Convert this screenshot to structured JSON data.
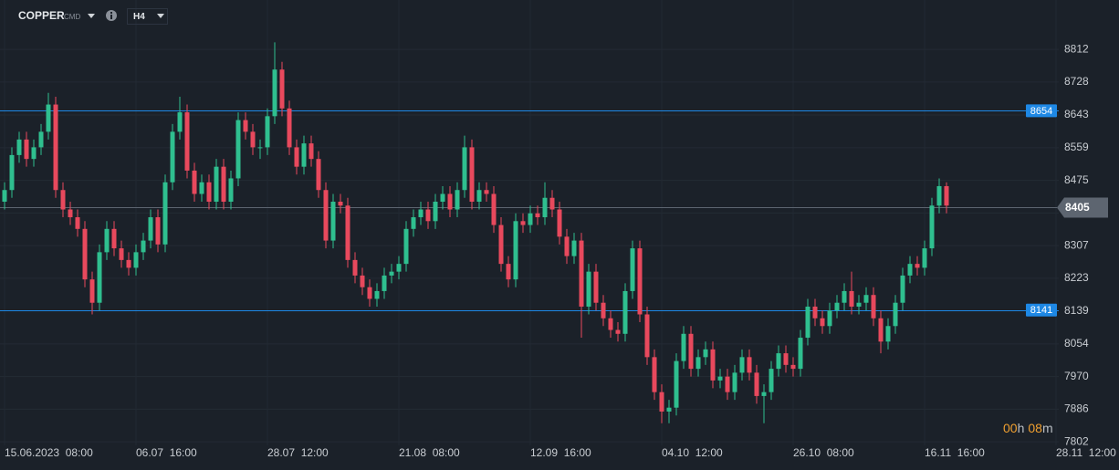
{
  "header": {
    "symbol": "COPPER",
    "market": "CMD",
    "timeframe": "H4"
  },
  "countdown": {
    "hours": "00",
    "hours_unit": "h",
    "minutes": "08",
    "minutes_unit": "m"
  },
  "chart_data": {
    "type": "candlestick",
    "up_color": "#2fbf8f",
    "down_color": "#e8495d",
    "open": [
      8420,
      8450,
      8540,
      8580,
      8530,
      8560,
      8600,
      8670,
      8450,
      8400,
      8380,
      8350,
      8220,
      8160,
      8290,
      8350,
      8300,
      8270,
      8250,
      8290,
      8320,
      8380,
      8310,
      8470,
      8600,
      8650,
      8500,
      8440,
      8470,
      8420,
      8510,
      8420,
      8480,
      8630,
      8600,
      8560,
      8560,
      8640,
      8760,
      8660,
      8560,
      8510,
      8570,
      8530,
      8450,
      8320,
      8420,
      8410,
      8270,
      8230,
      8200,
      8170,
      8190,
      8230,
      8240,
      8260,
      8350,
      8380,
      8400,
      8370,
      8420,
      8440,
      8400,
      8450,
      8560,
      8420,
      8450,
      8440,
      8360,
      8260,
      8220,
      8370,
      8360,
      8390,
      8380,
      8430,
      8400,
      8330,
      8280,
      8320,
      8150,
      8240,
      8160,
      8120,
      8090,
      8080,
      8190,
      8300,
      8130,
      8020,
      7930,
      7880,
      7890,
      8010,
      8080,
      7990,
      8020,
      8040,
      7960,
      7970,
      7930,
      7980,
      8020,
      7980,
      7920,
      7930,
      7990,
      8030,
      8000,
      7990,
      8070,
      8150,
      8120,
      8100,
      8140,
      8160,
      8190,
      8150,
      8160,
      8180,
      8120,
      8060,
      8100,
      8160,
      8230,
      8260,
      8250,
      8300,
      8410,
      8460
    ],
    "high": [
      8470,
      8560,
      8600,
      8600,
      8580,
      8620,
      8700,
      8690,
      8470,
      8420,
      8400,
      8370,
      8240,
      8310,
      8370,
      8370,
      8320,
      8290,
      8310,
      8340,
      8400,
      8400,
      8490,
      8620,
      8690,
      8670,
      8520,
      8490,
      8490,
      8530,
      8530,
      8500,
      8650,
      8650,
      8620,
      8580,
      8660,
      8830,
      8780,
      8680,
      8580,
      8590,
      8590,
      8550,
      8470,
      8440,
      8440,
      8430,
      8290,
      8250,
      8220,
      8210,
      8250,
      8260,
      8280,
      8370,
      8400,
      8420,
      8420,
      8440,
      8460,
      8460,
      8470,
      8590,
      8580,
      8470,
      8470,
      8460,
      8380,
      8280,
      8390,
      8390,
      8410,
      8410,
      8470,
      8450,
      8420,
      8350,
      8340,
      8340,
      8260,
      8260,
      8180,
      8140,
      8110,
      8210,
      8320,
      8320,
      8150,
      8040,
      7950,
      7910,
      8030,
      8100,
      8100,
      8040,
      8060,
      8060,
      7990,
      7990,
      8000,
      8040,
      8040,
      8000,
      7950,
      8010,
      8050,
      8050,
      8020,
      8090,
      8170,
      8170,
      8140,
      8160,
      8180,
      8210,
      8240,
      8180,
      8200,
      8200,
      8140,
      8120,
      8180,
      8250,
      8280,
      8280,
      8320,
      8430,
      8480,
      8470
    ],
    "low": [
      8400,
      8430,
      8520,
      8510,
      8510,
      8540,
      8580,
      8430,
      8380,
      8360,
      8330,
      8200,
      8130,
      8140,
      8270,
      8280,
      8250,
      8230,
      8230,
      8270,
      8300,
      8290,
      8290,
      8450,
      8580,
      8480,
      8420,
      8420,
      8400,
      8400,
      8400,
      8400,
      8460,
      8580,
      8540,
      8530,
      8540,
      8620,
      8640,
      8540,
      8490,
      8490,
      8510,
      8430,
      8300,
      8300,
      8390,
      8250,
      8210,
      8180,
      8150,
      8150,
      8170,
      8210,
      8220,
      8240,
      8330,
      8360,
      8350,
      8350,
      8400,
      8380,
      8380,
      8430,
      8400,
      8400,
      8420,
      8340,
      8240,
      8200,
      8200,
      8340,
      8340,
      8360,
      8360,
      8380,
      8310,
      8260,
      8260,
      8070,
      8130,
      8140,
      8100,
      8070,
      8060,
      8060,
      8170,
      8110,
      8000,
      7910,
      7850,
      7850,
      7870,
      7990,
      7970,
      7970,
      8000,
      7940,
      7940,
      7910,
      7910,
      7960,
      7960,
      7900,
      7850,
      7910,
      7970,
      7980,
      7970,
      7970,
      8050,
      8100,
      8080,
      8080,
      8120,
      8140,
      8130,
      8130,
      8140,
      8100,
      8030,
      8040,
      8080,
      8140,
      8210,
      8230,
      8230,
      8280,
      8390,
      8390
    ],
    "close": [
      8450,
      8540,
      8580,
      8530,
      8560,
      8600,
      8670,
      8450,
      8400,
      8380,
      8350,
      8220,
      8160,
      8290,
      8350,
      8300,
      8270,
      8250,
      8290,
      8320,
      8380,
      8310,
      8470,
      8600,
      8650,
      8500,
      8440,
      8470,
      8420,
      8510,
      8420,
      8480,
      8630,
      8600,
      8560,
      8560,
      8640,
      8760,
      8660,
      8560,
      8510,
      8570,
      8530,
      8450,
      8320,
      8420,
      8410,
      8270,
      8230,
      8200,
      8170,
      8190,
      8230,
      8240,
      8260,
      8350,
      8380,
      8400,
      8370,
      8420,
      8440,
      8400,
      8450,
      8560,
      8420,
      8450,
      8440,
      8360,
      8260,
      8220,
      8370,
      8360,
      8390,
      8380,
      8430,
      8400,
      8330,
      8280,
      8320,
      8150,
      8240,
      8160,
      8120,
      8090,
      8080,
      8190,
      8300,
      8130,
      8020,
      7930,
      7880,
      7890,
      8010,
      8080,
      7990,
      8020,
      8040,
      7960,
      7970,
      7930,
      7980,
      8020,
      7980,
      7920,
      7930,
      7990,
      8030,
      8000,
      7990,
      8070,
      8150,
      8120,
      8100,
      8140,
      8160,
      8190,
      8150,
      8160,
      8180,
      8120,
      8060,
      8100,
      8160,
      8230,
      8260,
      8250,
      8300,
      8410,
      8460,
      8410
    ],
    "xlim": [
      -0.625,
      152.625
    ],
    "xticks": [
      {
        "value": 0,
        "label": "15.06.2023  08:00"
      },
      {
        "value": 18,
        "label": "06.07  16:00"
      },
      {
        "value": 36,
        "label": "28.07  12:00"
      },
      {
        "value": 54,
        "label": "21.08  08:00"
      },
      {
        "value": 72,
        "label": "12.09  16:00"
      },
      {
        "value": 90,
        "label": "04.10  12:00"
      },
      {
        "value": 108,
        "label": "26.10  08:00"
      },
      {
        "value": 126,
        "label": "16.11  16:00"
      },
      {
        "value": 144,
        "label": "28.11  12:00"
      }
    ],
    "ylim": [
      7793,
      8939
    ],
    "yticks": [
      7802,
      7886,
      7970,
      8054,
      8139,
      8223,
      8307,
      8391,
      8475,
      8559,
      8643,
      8728,
      8812
    ],
    "grid": true,
    "levels": [
      {
        "value": 8654,
        "color": "#1e88e5"
      },
      {
        "value": 8141,
        "color": "#1e88e5"
      }
    ],
    "last_price": {
      "value": 8405,
      "color": "#5d6570"
    }
  }
}
